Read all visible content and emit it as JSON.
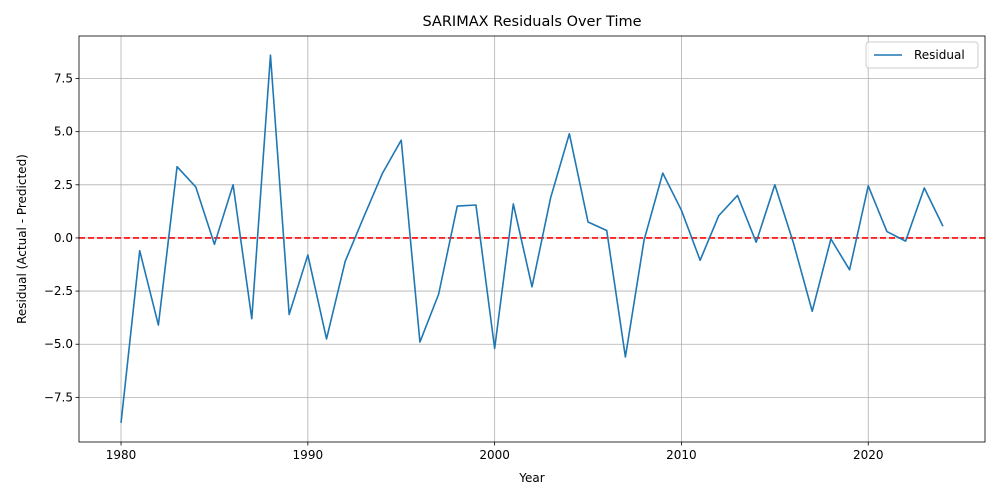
{
  "chart_data": {
    "type": "line",
    "title": "SARIMAX Residuals Over Time",
    "xlabel": "Year",
    "ylabel": "Residual (Actual - Predicted)",
    "xlim": [
      1977.75,
      2026.25
    ],
    "ylim": [
      -9.6,
      9.5
    ],
    "xticks": [
      1980,
      1990,
      2000,
      2010,
      2020
    ],
    "yticks": [
      -7.5,
      -5.0,
      -2.5,
      0.0,
      2.5,
      5.0,
      7.5
    ],
    "ytick_labels": [
      "−7.5",
      "−5.0",
      "−2.5",
      "0.0",
      "2.5",
      "5.0",
      "7.5"
    ],
    "grid": true,
    "legend_position": "top-right",
    "reference_line": {
      "y": 0,
      "color": "#ff0000",
      "style": "dashed"
    },
    "series": [
      {
        "name": "Residual",
        "color": "#1f77b4",
        "x": [
          1980,
          1981,
          1982,
          1983,
          1984,
          1985,
          1986,
          1987,
          1988,
          1989,
          1990,
          1991,
          1992,
          1993,
          1994,
          1995,
          1996,
          1997,
          1998,
          1999,
          2000,
          2001,
          2002,
          2003,
          2004,
          2005,
          2006,
          2007,
          2008,
          2009,
          2010,
          2011,
          2012,
          2013,
          2014,
          2015,
          2016,
          2017,
          2018,
          2019,
          2020,
          2021,
          2022,
          2023,
          2024
        ],
        "values": [
          -8.7,
          -0.6,
          -4.1,
          3.35,
          2.4,
          -0.3,
          2.5,
          -3.8,
          8.6,
          -3.6,
          -0.8,
          -4.75,
          -1.1,
          1.0,
          3.05,
          4.6,
          -4.9,
          -2.65,
          1.5,
          1.55,
          -5.2,
          1.6,
          -2.3,
          1.9,
          4.9,
          0.75,
          0.35,
          -5.6,
          -0.1,
          3.05,
          1.3,
          -1.05,
          1.05,
          2.0,
          -0.2,
          2.5,
          -0.25,
          -3.45,
          -0.05,
          -1.5,
          2.45,
          0.3,
          -0.15,
          2.35,
          0.55
        ]
      }
    ]
  }
}
